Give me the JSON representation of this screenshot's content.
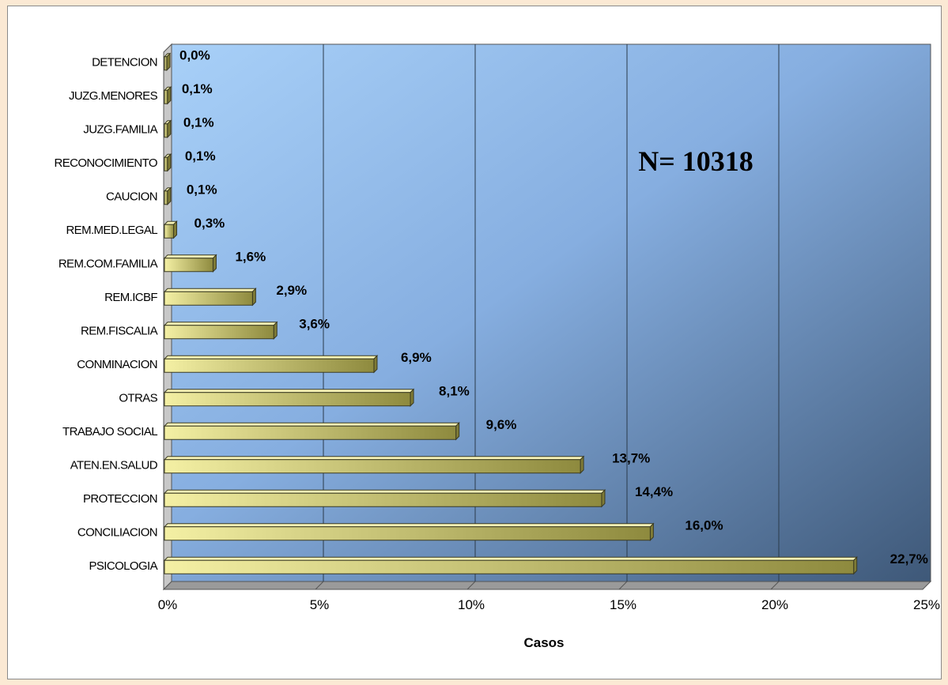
{
  "chart_data": {
    "type": "bar",
    "orientation": "horizontal",
    "categories": [
      "DETENCION",
      "JUZG.MENORES",
      "JUZG.FAMILIA",
      "RECONOCIMIENTO",
      "CAUCION",
      "REM.MED.LEGAL",
      "REM.COM.FAMILIA",
      "REM.ICBF",
      "REM.FISCALIA",
      "CONMINACION",
      "OTRAS",
      "TRABAJO SOCIAL",
      "ATEN.EN.SALUD",
      "PROTECCION",
      "CONCILIACION",
      "PSICOLOGIA"
    ],
    "values": [
      0.0,
      0.1,
      0.1,
      0.1,
      0.1,
      0.3,
      1.6,
      2.9,
      3.6,
      6.9,
      8.1,
      9.6,
      13.7,
      14.4,
      16.0,
      22.7
    ],
    "data_labels": [
      "0,0%",
      "0,1%",
      "0,1%",
      "0,1%",
      "0,1%",
      "0,3%",
      "1,6%",
      "2,9%",
      "3,6%",
      "6,9%",
      "8,1%",
      "9,6%",
      "13,7%",
      "14,4%",
      "16,0%",
      "22,7%"
    ],
    "xlabel": "Casos",
    "xlim": [
      0,
      25
    ],
    "xticks": [
      0,
      5,
      10,
      15,
      20,
      25
    ],
    "xtick_labels": [
      "0%",
      "5%",
      "10%",
      "15%",
      "20%",
      "25%"
    ],
    "grid": "vertical",
    "annotation": "N= 10318",
    "colors": {
      "bar": "#f0ec9a",
      "bar_dark": "#8e8a3e",
      "plot_bg_light": "#a8d0f8",
      "plot_bg_dark": "#3e5878",
      "page_bg": "#fbe9d4"
    }
  }
}
